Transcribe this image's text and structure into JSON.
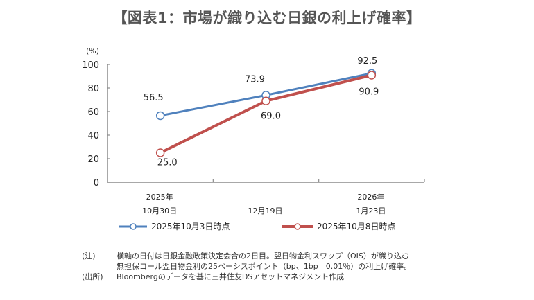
{
  "title": "【図表1：市場が織り込む日銀の利上げ確率】",
  "chart_data": {
    "type": "line",
    "title": "【図表1：市場が織り込む日銀の利上げ確率】",
    "ylabel": "(%)",
    "xlabel": "",
    "ylim": [
      0,
      100
    ],
    "yticks": [
      0,
      20,
      40,
      60,
      80,
      100
    ],
    "ytick_labels": [
      "0",
      "20",
      "40",
      "60",
      "80",
      "100"
    ],
    "categories": [
      {
        "line1": "2025年",
        "line2": "10月30日"
      },
      {
        "line1": "",
        "line2": "12月19日"
      },
      {
        "line1": "2026年",
        "line2": "1月23日"
      }
    ],
    "series": [
      {
        "name": "2025年10月3日時点",
        "color": "#4f81bd",
        "values": [
          56.5,
          73.9,
          92.5
        ],
        "labels": [
          "56.5",
          "73.9",
          "92.5"
        ]
      },
      {
        "name": "2025年10月8日時点",
        "color": "#c0504d",
        "values": [
          25.0,
          69.0,
          90.9
        ],
        "labels": [
          "25.0",
          "69.0",
          "90.9"
        ]
      }
    ],
    "legend_position": "bottom",
    "grid": false
  },
  "notes": [
    {
      "key": "(注)",
      "lines": [
        "横軸の日付は日銀金融政策決定会合の2日目。翌日物金利スワップ（OIS）が織り込む",
        "無担保コール翌日物金利の25ベーシスポイント（bp、1bp＝0.01％）の利上げ確率。"
      ]
    },
    {
      "key": "(出所)",
      "lines": [
        "Bloombergのデータを基に三井住友DSアセットマネジメント作成"
      ]
    }
  ]
}
